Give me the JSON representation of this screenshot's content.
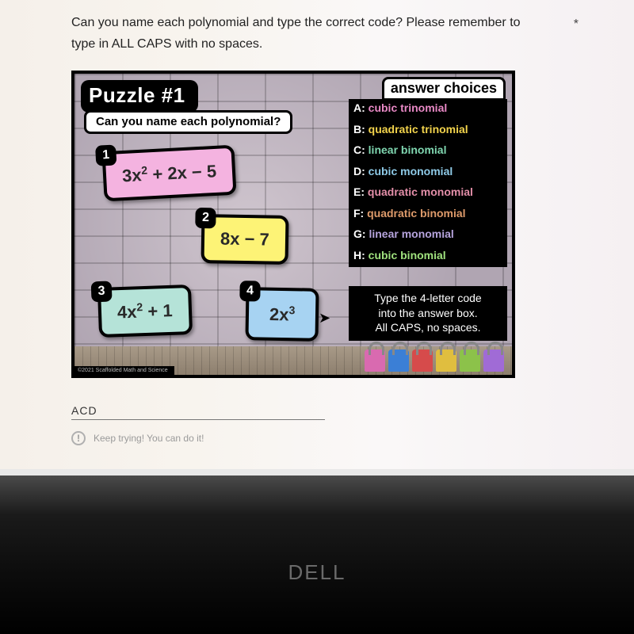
{
  "instruction_line1": "Can you name each polynomial and type the correct code? Please remember to",
  "instruction_line2": "type in ALL CAPS with no spaces.",
  "asterisk": "*",
  "puzzle": {
    "title": "Puzzle #1",
    "subtitle": "Can you name each polynomial?",
    "answer_header": "answer choices",
    "choices": [
      {
        "letter": "A",
        "text": "cubic trinomial",
        "color": "#e989c6"
      },
      {
        "letter": "B",
        "text": "quadratic trinomial",
        "color": "#f2d34c"
      },
      {
        "letter": "C",
        "text": "linear binomial",
        "color": "#7fd6b0"
      },
      {
        "letter": "D",
        "text": "cubic monomial",
        "color": "#8fcbe8"
      },
      {
        "letter": "E",
        "text": "quadratic monomial",
        "color": "#e48fa9"
      },
      {
        "letter": "F",
        "text": "quadratic binomial",
        "color": "#de9b6b"
      },
      {
        "letter": "G",
        "text": "linear monomial",
        "color": "#b6a4dd"
      },
      {
        "letter": "H",
        "text": "cubic binomial",
        "color": "#a0e27e"
      }
    ],
    "instruction_box_l1": "Type the 4-letter code",
    "instruction_box_l2": "into the answer box.",
    "instruction_box_l3": "All CAPS, no spaces.",
    "cards": {
      "c1": {
        "badge": "1",
        "bg": "#f4b3e0"
      },
      "c2": {
        "badge": "2",
        "bg": "#fdf376"
      },
      "c3": {
        "badge": "3",
        "bg": "#b5e3d8"
      },
      "c4": {
        "badge": "4",
        "bg": "#a7d3f2"
      }
    },
    "lock_colors": [
      "#d96ab0",
      "#3b7fd6",
      "#d64b4b",
      "#e0be3f",
      "#8cc24a",
      "#a06bd6"
    ],
    "copyright": "©2021 Scaffolded Math and Science"
  },
  "answer_value": "ACD",
  "feedback_text": "Keep trying! You can do it!",
  "brand": "DELL"
}
